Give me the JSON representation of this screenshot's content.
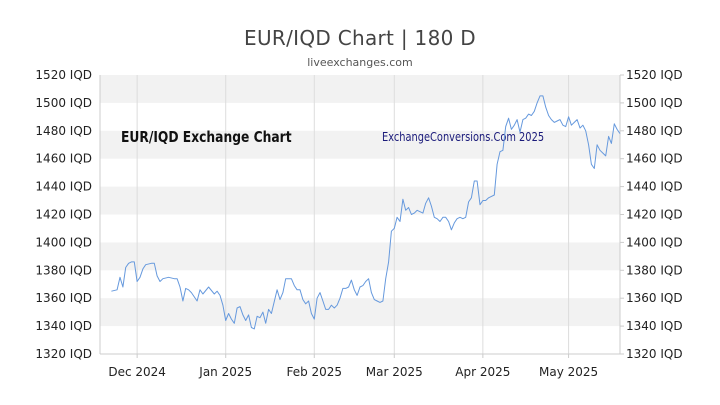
{
  "chart_data": {
    "type": "line",
    "title": "EUR/IQD Chart | 180 D",
    "subtitle": "liveexchanges.com",
    "inner_title": "EUR/IQD Exchange Chart",
    "watermark": "ExchangeConversions.Com 2025",
    "y_unit": "IQD",
    "ylim": [
      1320,
      1520
    ],
    "y_ticks": [
      1320,
      1340,
      1360,
      1380,
      1400,
      1420,
      1440,
      1460,
      1480,
      1500,
      1520
    ],
    "y_tick_labels": [
      "1320 IQD",
      "1340 IQD",
      "1360 IQD",
      "1380 IQD",
      "1400 IQD",
      "1420 IQD",
      "1440 IQD",
      "1460 IQD",
      "1480 IQD",
      "1500 IQD",
      "1520 IQD"
    ],
    "xlim": [
      0,
      182
    ],
    "x_ticks": [
      {
        "label": "Dec 2024",
        "day": 13
      },
      {
        "label": "Jan 2025",
        "day": 44
      },
      {
        "label": "Feb 2025",
        "day": 75
      },
      {
        "label": "Mar 2025",
        "day": 103
      },
      {
        "label": "Apr 2025",
        "day": 134
      },
      {
        "label": "May 2025",
        "day": 164
      }
    ],
    "grid": true,
    "line_color": "#6699dd",
    "band_color": "#f2f2f2",
    "series": [
      {
        "values": [
          [
            4,
            1365
          ],
          [
            6,
            1366
          ],
          [
            7,
            1375
          ],
          [
            8,
            1368
          ],
          [
            9,
            1382
          ],
          [
            10,
            1385
          ],
          [
            11,
            1386
          ],
          [
            12,
            1386
          ],
          [
            13,
            1372
          ],
          [
            14,
            1375
          ],
          [
            15,
            1381
          ],
          [
            16,
            1384
          ],
          [
            18,
            1385
          ],
          [
            19,
            1385
          ],
          [
            20,
            1376
          ],
          [
            21,
            1372
          ],
          [
            22,
            1374
          ],
          [
            24,
            1375
          ],
          [
            26,
            1374
          ],
          [
            27,
            1374
          ],
          [
            28,
            1368
          ],
          [
            29,
            1358
          ],
          [
            30,
            1367
          ],
          [
            31,
            1366
          ],
          [
            32,
            1364
          ],
          [
            34,
            1358
          ],
          [
            35,
            1366
          ],
          [
            36,
            1363
          ],
          [
            38,
            1368
          ],
          [
            40,
            1363
          ],
          [
            41,
            1365
          ],
          [
            42,
            1362
          ],
          [
            43,
            1355
          ],
          [
            44,
            1344
          ],
          [
            45,
            1349
          ],
          [
            46,
            1345
          ],
          [
            47,
            1342
          ],
          [
            48,
            1353
          ],
          [
            49,
            1354
          ],
          [
            50,
            1348
          ],
          [
            51,
            1344
          ],
          [
            52,
            1348
          ],
          [
            53,
            1339
          ],
          [
            54,
            1338
          ],
          [
            55,
            1347
          ],
          [
            56,
            1346
          ],
          [
            57,
            1350
          ],
          [
            58,
            1342
          ],
          [
            59,
            1352
          ],
          [
            60,
            1349
          ],
          [
            62,
            1366
          ],
          [
            63,
            1359
          ],
          [
            64,
            1364
          ],
          [
            65,
            1374
          ],
          [
            66,
            1374
          ],
          [
            67,
            1374
          ],
          [
            68,
            1369
          ],
          [
            69,
            1366
          ],
          [
            70,
            1366
          ],
          [
            71,
            1359
          ],
          [
            72,
            1356
          ],
          [
            73,
            1358
          ],
          [
            74,
            1349
          ],
          [
            75,
            1345
          ],
          [
            76,
            1360
          ],
          [
            77,
            1364
          ],
          [
            78,
            1358
          ],
          [
            79,
            1352
          ],
          [
            80,
            1352
          ],
          [
            81,
            1355
          ],
          [
            82,
            1353
          ],
          [
            83,
            1355
          ],
          [
            84,
            1360
          ],
          [
            85,
            1367
          ],
          [
            86,
            1367
          ],
          [
            87,
            1368
          ],
          [
            88,
            1373
          ],
          [
            89,
            1366
          ],
          [
            90,
            1362
          ],
          [
            91,
            1368
          ],
          [
            92,
            1369
          ],
          [
            93,
            1372
          ],
          [
            94,
            1374
          ],
          [
            95,
            1364
          ],
          [
            96,
            1359
          ],
          [
            97,
            1358
          ],
          [
            98,
            1357
          ],
          [
            99,
            1358
          ],
          [
            100,
            1374
          ],
          [
            101,
            1386
          ],
          [
            102,
            1408
          ],
          [
            103,
            1410
          ],
          [
            104,
            1418
          ],
          [
            105,
            1415
          ],
          [
            106,
            1431
          ],
          [
            107,
            1423
          ],
          [
            108,
            1425
          ],
          [
            109,
            1420
          ],
          [
            110,
            1421
          ],
          [
            111,
            1423
          ],
          [
            113,
            1421
          ],
          [
            114,
            1428
          ],
          [
            115,
            1432
          ],
          [
            116,
            1426
          ],
          [
            117,
            1418
          ],
          [
            118,
            1417
          ],
          [
            119,
            1415
          ],
          [
            120,
            1418
          ],
          [
            121,
            1418
          ],
          [
            122,
            1415
          ],
          [
            123,
            1409
          ],
          [
            124,
            1414
          ],
          [
            125,
            1417
          ],
          [
            126,
            1418
          ],
          [
            127,
            1417
          ],
          [
            128,
            1418
          ],
          [
            129,
            1429
          ],
          [
            130,
            1432
          ],
          [
            131,
            1444
          ],
          [
            132,
            1444
          ],
          [
            133,
            1427
          ],
          [
            134,
            1430
          ],
          [
            135,
            1430
          ],
          [
            136,
            1432
          ],
          [
            137,
            1433
          ],
          [
            138,
            1434
          ],
          [
            139,
            1456
          ],
          [
            140,
            1465
          ],
          [
            141,
            1466
          ],
          [
            142,
            1483
          ],
          [
            143,
            1489
          ],
          [
            144,
            1481
          ],
          [
            145,
            1484
          ],
          [
            146,
            1488
          ],
          [
            147,
            1479
          ],
          [
            148,
            1488
          ],
          [
            149,
            1489
          ],
          [
            150,
            1492
          ],
          [
            151,
            1491
          ],
          [
            152,
            1494
          ],
          [
            153,
            1500
          ],
          [
            154,
            1505
          ],
          [
            155,
            1505
          ],
          [
            156,
            1497
          ],
          [
            157,
            1491
          ],
          [
            158,
            1488
          ],
          [
            159,
            1486
          ],
          [
            160,
            1487
          ],
          [
            161,
            1488
          ],
          [
            162,
            1484
          ],
          [
            163,
            1483
          ],
          [
            164,
            1490
          ],
          [
            165,
            1484
          ],
          [
            166,
            1486
          ],
          [
            167,
            1488
          ],
          [
            168,
            1482
          ],
          [
            169,
            1484
          ],
          [
            170,
            1480
          ],
          [
            171,
            1470
          ],
          [
            172,
            1456
          ],
          [
            173,
            1453
          ],
          [
            174,
            1470
          ],
          [
            175,
            1466
          ],
          [
            176,
            1464
          ],
          [
            177,
            1462
          ],
          [
            178,
            1476
          ],
          [
            179,
            1471
          ],
          [
            180,
            1485
          ],
          [
            181,
            1481
          ],
          [
            182,
            1478
          ]
        ]
      }
    ]
  }
}
